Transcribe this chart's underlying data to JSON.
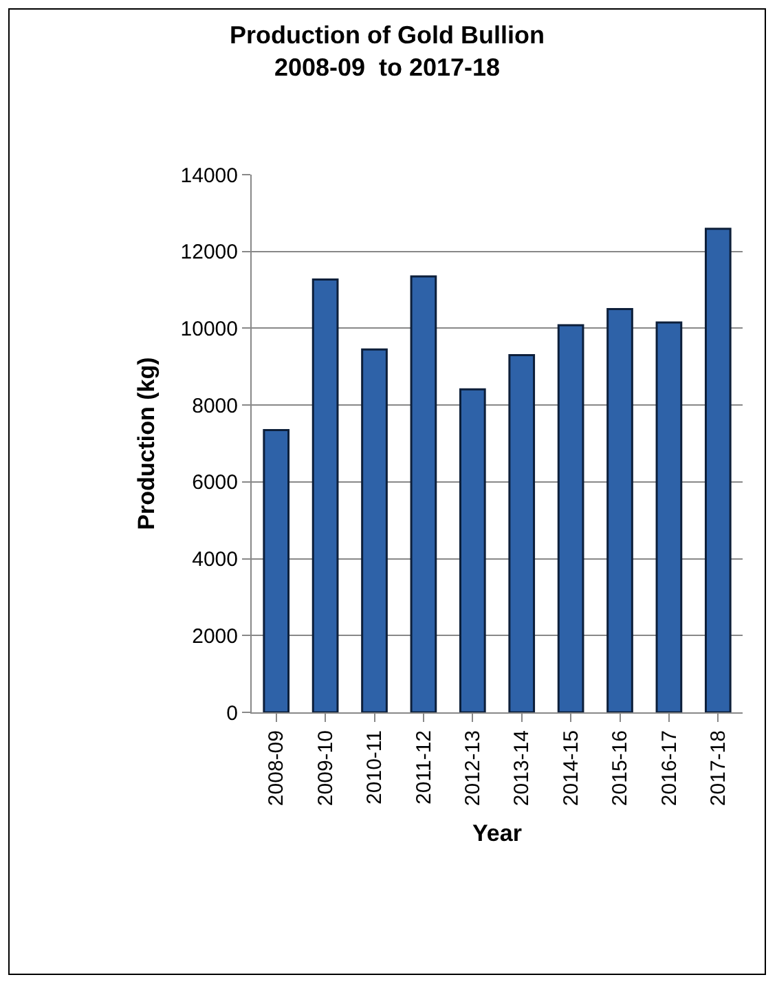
{
  "chart_data": {
    "type": "bar",
    "title": "Production of Gold Bullion\n2008-09  to 2017-18",
    "xlabel": "Year",
    "ylabel": "Production (kg)",
    "categories": [
      "2008-09",
      "2009-10",
      "2010-11",
      "2011-12",
      "2012-13",
      "2013-14",
      "2014-15",
      "2015-16",
      "2016-17",
      "2017-18"
    ],
    "values": [
      7350,
      11270,
      9450,
      11350,
      8410,
      9300,
      10080,
      10500,
      10150,
      12590
    ],
    "color": "#2e62a8",
    "ylim": [
      0,
      14000
    ],
    "yticks": [
      0,
      2000,
      4000,
      6000,
      8000,
      10000,
      12000,
      14000
    ],
    "grid": "y",
    "legend": false
  }
}
